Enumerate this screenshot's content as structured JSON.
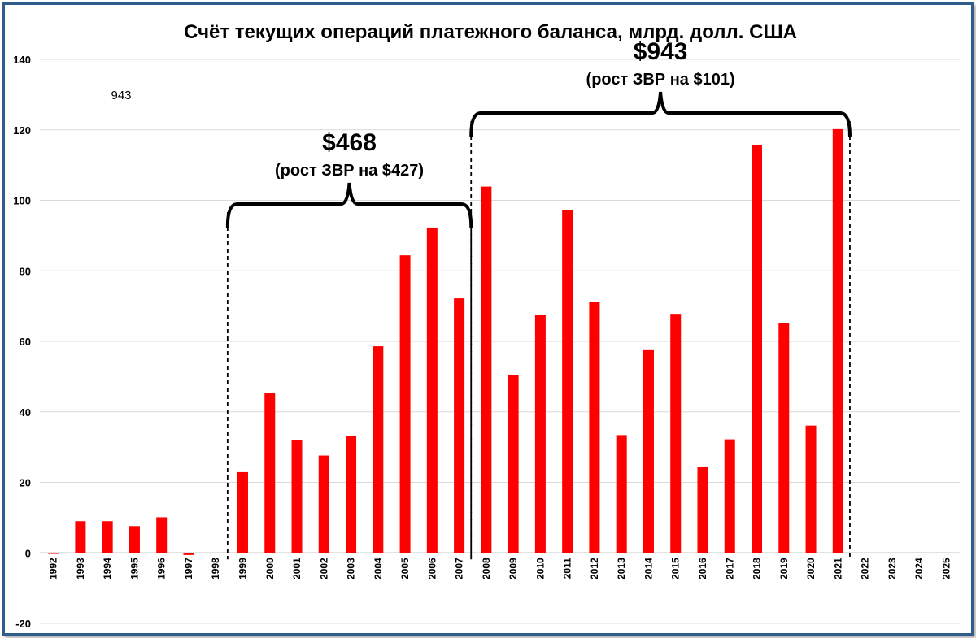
{
  "chart_data": {
    "type": "bar",
    "title": "Счёт текущих операций платежного баланса, млрд. долл. США",
    "xlabel": "",
    "ylabel": "",
    "ylim": [
      -20,
      140
    ],
    "yticks": [
      -20,
      0,
      20,
      40,
      60,
      80,
      100,
      120,
      140
    ],
    "grid": true,
    "bar_color": "#ff0000",
    "categories": [
      "1992",
      "1993",
      "1994",
      "1995",
      "1996",
      "1997",
      "1998",
      "1999",
      "2000",
      "2001",
      "2002",
      "2003",
      "2004",
      "2005",
      "2006",
      "2007",
      "2008",
      "2009",
      "2010",
      "2011",
      "2012",
      "2013",
      "2014",
      "2015",
      "2016",
      "2017",
      "2018",
      "2019",
      "2020",
      "2021",
      "2022",
      "2023",
      "2024",
      "2025"
    ],
    "values": [
      -0.3,
      9.0,
      9.0,
      7.6,
      10.1,
      -0.6,
      null,
      22.9,
      45.4,
      32.1,
      27.6,
      33.1,
      58.6,
      84.4,
      92.3,
      72.2,
      103.9,
      50.4,
      67.5,
      97.3,
      71.3,
      33.4,
      57.5,
      67.8,
      24.5,
      32.2,
      115.7,
      65.3,
      36.1,
      120.2,
      null,
      null,
      null,
      null
    ],
    "annotations": [
      {
        "sum": "$468",
        "subtitle": "(рост ЗВР на $427)",
        "from": "1999",
        "to": "2007"
      },
      {
        "sum": "$943",
        "subtitle": "(рост ЗВР на $101)",
        "from": "2008",
        "to": "2021"
      }
    ],
    "stray_label": "943"
  }
}
